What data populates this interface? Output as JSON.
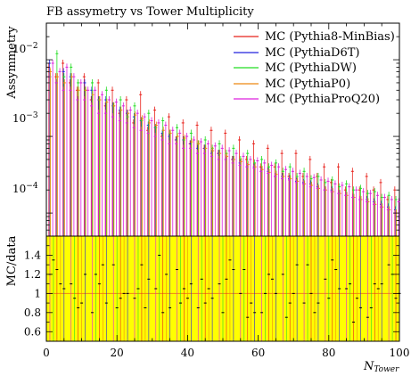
{
  "chart_data": [
    {
      "type": "scatter",
      "panel": "main",
      "title": "FB assymetry vs Tower Multiplicity",
      "ylabel": "Assymmetry",
      "yscale": "log",
      "ylim": [
        5e-05,
        0.03
      ],
      "xlim": [
        0,
        100
      ],
      "yticks": [
        {
          "value": 0.0001,
          "base": "10",
          "exp": "−4"
        },
        {
          "value": 0.001,
          "base": "10",
          "exp": "−3"
        },
        {
          "value": 0.01,
          "base": "10",
          "exp": "−2"
        }
      ],
      "legend_position": "top-right",
      "grid": false,
      "series": [
        {
          "name": "MC (Pythia8-MinBias)",
          "color": "#e8211b",
          "x": [
            1,
            3,
            5,
            7,
            9,
            11,
            13,
            15,
            17,
            19,
            21,
            23,
            25,
            27,
            29,
            31,
            33,
            35,
            37,
            39,
            41,
            43,
            45,
            47,
            49,
            51,
            53,
            55,
            57,
            59,
            61,
            63,
            65,
            67,
            69,
            71,
            73,
            75,
            77,
            79,
            81,
            83,
            85,
            87,
            89,
            91,
            93,
            95,
            97,
            99
          ],
          "y": [
            0.008,
            0.006,
            0.009,
            0.005,
            0.004,
            0.006,
            0.003,
            0.005,
            0.0025,
            0.004,
            0.002,
            0.003,
            0.0015,
            0.0035,
            0.0012,
            0.0022,
            0.001,
            0.0018,
            0.0009,
            0.0015,
            0.0008,
            0.0014,
            0.0007,
            0.0012,
            0.0006,
            0.0011,
            0.0005,
            0.0009,
            0.0005,
            0.0008,
            0.0004,
            0.0007,
            0.0004,
            0.0006,
            0.0003,
            0.0006,
            0.0003,
            0.0005,
            0.0003,
            0.0004,
            0.00025,
            0.0004,
            0.0002,
            0.00035,
            0.0002,
            0.0003,
            0.0002,
            0.00025,
            0.00015,
            0.0002
          ]
        },
        {
          "name": "MC (PythiaD6T)",
          "color": "#2222dd",
          "x": [
            1,
            3,
            5,
            7,
            9,
            11,
            13,
            15,
            17,
            19,
            21,
            23,
            25,
            27,
            29,
            31,
            33,
            35,
            37,
            39,
            41,
            43,
            45,
            47,
            49,
            51,
            53,
            55,
            57,
            59,
            61,
            63,
            65,
            67,
            69,
            71,
            73,
            75,
            77,
            79,
            81,
            83,
            85,
            87,
            89,
            91,
            93,
            95,
            97,
            99
          ],
          "y": [
            0.009,
            0.005,
            0.007,
            0.006,
            0.003,
            0.005,
            0.004,
            0.003,
            0.003,
            0.0025,
            0.0022,
            0.002,
            0.0018,
            0.0016,
            0.0014,
            0.0013,
            0.0011,
            0.001,
            0.0009,
            0.0009,
            0.0008,
            0.0007,
            0.0007,
            0.0006,
            0.0006,
            0.0005,
            0.0005,
            0.00045,
            0.0004,
            0.0004,
            0.00035,
            0.00035,
            0.0003,
            0.0003,
            0.00028,
            0.00026,
            0.00025,
            0.00024,
            0.00022,
            0.0002,
            0.0002,
            0.00018,
            0.00017,
            0.00016,
            0.00015,
            0.00015,
            0.00014,
            0.00013,
            0.00012,
            0.00011
          ]
        },
        {
          "name": "MC (PythiaDW)",
          "color": "#22dd22",
          "x": [
            1,
            3,
            5,
            7,
            9,
            11,
            13,
            15,
            17,
            19,
            21,
            23,
            25,
            27,
            29,
            31,
            33,
            35,
            37,
            39,
            41,
            43,
            45,
            47,
            49,
            51,
            53,
            55,
            57,
            59,
            61,
            63,
            65,
            67,
            69,
            71,
            73,
            75,
            77,
            79,
            81,
            83,
            85,
            87,
            89,
            91,
            93,
            95,
            97,
            99
          ],
          "y": [
            0.006,
            0.012,
            0.006,
            0.008,
            0.005,
            0.004,
            0.005,
            0.003,
            0.004,
            0.0025,
            0.003,
            0.0018,
            0.0025,
            0.0016,
            0.002,
            0.0013,
            0.0016,
            0.0011,
            0.0013,
            0.0009,
            0.0011,
            0.0008,
            0.0009,
            0.0007,
            0.0008,
            0.0006,
            0.0007,
            0.0005,
            0.0006,
            0.00045,
            0.0005,
            0.0004,
            0.00045,
            0.00035,
            0.0004,
            0.0003,
            0.00035,
            0.00028,
            0.0003,
            0.00025,
            0.00027,
            0.00022,
            0.00024,
            0.0002,
            0.00021,
            0.00018,
            0.00019,
            0.00016,
            0.00017,
            0.00015
          ]
        },
        {
          "name": "MC (PythiaP0)",
          "color": "#ee8811",
          "x": [
            1,
            3,
            5,
            7,
            9,
            11,
            13,
            15,
            17,
            19,
            21,
            23,
            25,
            27,
            29,
            31,
            33,
            35,
            37,
            39,
            41,
            43,
            45,
            47,
            49,
            51,
            53,
            55,
            57,
            59,
            61,
            63,
            65,
            67,
            69,
            71,
            73,
            75,
            77,
            79,
            81,
            83,
            85,
            87,
            89,
            91,
            93,
            95,
            97,
            99
          ],
          "y": [
            0.007,
            0.006,
            0.005,
            0.006,
            0.004,
            0.004,
            0.0035,
            0.003,
            0.0028,
            0.0025,
            0.0022,
            0.002,
            0.0019,
            0.0017,
            0.0015,
            0.0014,
            0.0012,
            0.0011,
            0.001,
            0.00095,
            0.00085,
            0.0008,
            0.0007,
            0.00065,
            0.0006,
            0.00055,
            0.0005,
            0.00047,
            0.00043,
            0.0004,
            0.00037,
            0.00034,
            0.00032,
            0.0003,
            0.00028,
            0.00026,
            0.00024,
            0.00023,
            0.00021,
            0.0002,
            0.00019,
            0.00018,
            0.00017,
            0.00016,
            0.00015,
            0.00014,
            0.00013,
            0.00012,
            0.00011,
            0.0001
          ]
        },
        {
          "name": "MC (PythiaProQ20)",
          "color": "#dd22dd",
          "x": [
            0.5,
            1.5,
            2.5,
            3.5,
            4.5,
            5.5,
            6.5,
            7.5,
            8.5,
            9.5,
            10.5,
            11.5,
            12.5,
            13.5,
            14.5,
            15.5,
            16.5,
            17.5,
            18.5,
            19.5,
            20.5,
            21.5,
            22.5,
            23.5,
            24.5,
            25.5,
            26.5,
            27.5,
            28.5,
            29.5,
            30.5,
            31.5,
            32.5,
            33.5,
            34.5,
            35.5,
            36.5,
            37.5,
            38.5,
            39.5,
            40.5,
            41.5,
            42.5,
            43.5,
            44.5,
            45.5,
            46.5,
            47.5,
            48.5,
            49.5,
            50.5,
            51.5,
            52.5,
            53.5,
            54.5,
            55.5,
            56.5,
            57.5,
            58.5,
            59.5,
            60.5,
            61.5,
            62.5,
            63.5,
            64.5,
            65.5,
            66.5,
            67.5,
            68.5,
            69.5,
            70.5,
            71.5,
            72.5,
            73.5,
            74.5,
            75.5,
            76.5,
            77.5,
            78.5,
            79.5,
            80.5,
            81.5,
            82.5,
            83.5,
            84.5,
            85.5,
            86.5,
            87.5,
            88.5,
            89.5,
            90.5,
            91.5,
            92.5,
            93.5,
            94.5,
            95.5,
            96.5,
            97.5,
            98.5,
            99.5
          ],
          "y": [
            0.006,
            0.009,
            0.005,
            0.007,
            0.004,
            0.008,
            0.004,
            0.006,
            0.003,
            0.005,
            0.003,
            0.004,
            0.0025,
            0.004,
            0.002,
            0.0035,
            0.002,
            0.003,
            0.0018,
            0.0028,
            0.0016,
            0.0025,
            0.0015,
            0.0022,
            0.0013,
            0.002,
            0.0012,
            0.0018,
            0.0011,
            0.0016,
            0.001,
            0.0015,
            0.0009,
            0.0014,
            0.0008,
            0.0012,
            0.0008,
            0.0011,
            0.0007,
            0.001,
            0.0007,
            0.0009,
            0.0006,
            0.00085,
            0.0006,
            0.0008,
            0.00055,
            0.00075,
            0.0005,
            0.0007,
            0.0005,
            0.00065,
            0.00045,
            0.0006,
            0.00042,
            0.00055,
            0.0004,
            0.0005,
            0.00038,
            0.00048,
            0.00035,
            0.00045,
            0.00033,
            0.00042,
            0.0003,
            0.0004,
            0.00028,
            0.00037,
            0.00027,
            0.00035,
            0.00025,
            0.00033,
            0.00024,
            0.0003,
            0.00022,
            0.00029,
            0.00021,
            0.00027,
            0.0002,
            0.00026,
            0.00019,
            0.00024,
            0.00018,
            0.00023,
            0.00017,
            0.00022,
            0.00016,
            0.0002,
            0.00015,
            0.00019,
            0.00014,
            0.00018,
            0.00013,
            0.00017,
            0.00012,
            0.00016,
            0.00011,
            0.00015,
            0.0001,
            0.00014
          ]
        }
      ]
    },
    {
      "type": "scatter",
      "panel": "ratio",
      "ylabel": "MC/data",
      "xlabel": "N",
      "xlabel_sub": "Tower",
      "xlim": [
        0,
        100
      ],
      "ylim": [
        0.5,
        1.6
      ],
      "xticks": [
        "0",
        "20",
        "40",
        "60",
        "80",
        "100"
      ],
      "xtick_values": [
        0,
        20,
        40,
        60,
        80,
        100
      ],
      "yticks": [
        "0.6",
        "0.8",
        "1",
        "1.2",
        "1.4"
      ],
      "ytick_values": [
        0.6,
        0.8,
        1.0,
        1.2,
        1.4
      ],
      "reference_line": 1.0,
      "band_color": "#ffff00",
      "series": [
        {
          "name": "MC (Pythia8-MinBias)",
          "color": "#e8211b",
          "x": [
            3,
            9,
            15,
            21,
            27,
            33,
            39,
            45,
            51,
            57,
            63,
            69,
            75,
            81,
            87,
            93,
            99
          ],
          "y": [
            1.25,
            0.85,
            1.1,
            0.95,
            1.3,
            0.8,
            1.05,
            0.9,
            1.15,
            0.75,
            1.2,
            0.9,
            1.0,
            1.35,
            0.7,
            1.1,
            0.95
          ]
        },
        {
          "name": "MC (PythiaD6T)",
          "color": "#2222dd",
          "x": [
            5,
            11,
            17,
            23,
            29,
            35,
            41,
            47,
            53,
            59,
            65,
            71,
            77,
            83,
            89,
            95
          ],
          "y": [
            1.05,
            1.2,
            0.9,
            1.0,
            1.15,
            0.85,
            1.1,
            0.95,
            1.25,
            0.8,
            1.0,
            1.3,
            0.9,
            1.05,
            0.85,
            1.1
          ]
        },
        {
          "name": "MC (PythiaDW)",
          "color": "#22dd22",
          "x": [
            2,
            8,
            14,
            20,
            26,
            32,
            38,
            44,
            50,
            56,
            62,
            68,
            74,
            80,
            86,
            92,
            98
          ],
          "y": [
            1.35,
            0.95,
            1.2,
            0.85,
            1.05,
            1.4,
            0.9,
            1.15,
            0.8,
            1.25,
            1.0,
            0.75,
            1.3,
            0.95,
            1.1,
            0.85,
            1.2
          ]
        },
        {
          "name": "MC (PythiaP0)",
          "color": "#ee8811",
          "x": [
            4,
            10,
            16,
            22,
            28,
            34,
            40,
            46,
            52,
            58,
            64,
            70,
            76,
            82,
            88,
            94,
            100
          ],
          "y": [
            1.1,
            0.9,
            1.3,
            1.0,
            0.85,
            1.2,
            0.95,
            1.05,
            1.35,
            0.9,
            1.15,
            1.0,
            0.8,
            1.25,
            0.95,
            1.05,
            1.0
          ]
        },
        {
          "name": "MC (PythiaProQ20)",
          "color": "#dd22dd",
          "x": [
            1,
            7,
            13,
            19,
            25,
            31,
            37,
            43,
            49,
            55,
            61,
            67,
            73,
            79,
            85,
            91,
            97
          ],
          "y": [
            1.2,
            1.1,
            0.8,
            1.3,
            0.95,
            1.05,
            1.25,
            0.85,
            1.1,
            1.0,
            0.8,
            1.2,
            0.9,
            1.15,
            1.05,
            0.75,
            1.3
          ]
        }
      ]
    }
  ]
}
